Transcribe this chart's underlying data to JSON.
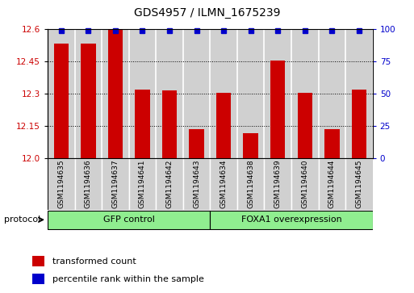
{
  "title": "GDS4957 / ILMN_1675239",
  "samples": [
    "GSM1194635",
    "GSM1194636",
    "GSM1194637",
    "GSM1194641",
    "GSM1194642",
    "GSM1194643",
    "GSM1194634",
    "GSM1194638",
    "GSM1194639",
    "GSM1194640",
    "GSM1194644",
    "GSM1194645"
  ],
  "transformed_counts": [
    12.535,
    12.535,
    12.6,
    12.32,
    12.315,
    12.135,
    12.305,
    12.115,
    12.455,
    12.305,
    12.135,
    12.32
  ],
  "percentile_ranks": [
    100,
    100,
    100,
    100,
    100,
    100,
    100,
    100,
    100,
    100,
    100,
    100
  ],
  "ylim_left": [
    12.0,
    12.6
  ],
  "ylim_right": [
    0,
    100
  ],
  "yticks_left": [
    12.0,
    12.15,
    12.3,
    12.45,
    12.6
  ],
  "yticks_right": [
    0,
    25,
    50,
    75,
    100
  ],
  "bar_color": "#cc0000",
  "dot_color": "#0000cc",
  "bar_width": 0.55,
  "gfp_indices": [
    0,
    1,
    2,
    3,
    4,
    5
  ],
  "foxa_indices": [
    6,
    7,
    8,
    9,
    10,
    11
  ],
  "group_color": "#90ee90",
  "sample_bg_color": "#d0d0d0",
  "protocol_label": "protocol",
  "legend_items": [
    {
      "label": "transformed count",
      "color": "#cc0000"
    },
    {
      "label": "percentile rank within the sample",
      "color": "#0000cc"
    }
  ],
  "tick_label_color_left": "#cc0000",
  "tick_label_color_right": "#0000cc",
  "title_fontsize": 10,
  "tick_fontsize": 7.5,
  "label_fontsize": 8
}
